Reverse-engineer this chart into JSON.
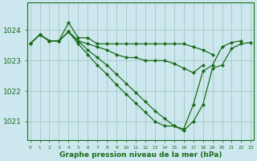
{
  "background_color": "#cce8ee",
  "grid_color": "#aacccc",
  "line_color": "#1a6b1a",
  "marker_color": "#1a6b1a",
  "text_color": "#1a6b1a",
  "xlabel": "Graphe pression niveau de la mer (hPa)",
  "ylim": [
    1020.4,
    1024.9
  ],
  "xlim": [
    -0.3,
    23.3
  ],
  "yticks": [
    1021,
    1022,
    1023,
    1024
  ],
  "xtick_labels": [
    "0",
    "1",
    "2",
    "3",
    "4",
    "5",
    "6",
    "7",
    "8",
    "9",
    "10",
    "11",
    "12",
    "13",
    "14",
    "15",
    "16",
    "17",
    "18",
    "19",
    "20",
    "21",
    "22",
    "23"
  ],
  "series": [
    [
      1023.55,
      1023.85,
      1023.65,
      1023.65,
      1024.25,
      1023.75,
      1023.75,
      1023.55,
      1023.55,
      1023.55,
      1023.55,
      1023.55,
      1023.55,
      1023.55,
      1023.55,
      1023.55,
      1023.55,
      1023.45,
      1023.35,
      1023.2,
      null,
      null,
      null,
      null
    ],
    [
      1023.55,
      1023.85,
      1023.65,
      1023.65,
      1023.95,
      1023.65,
      1023.55,
      1023.45,
      1023.35,
      1023.2,
      1023.1,
      1023.1,
      1023.0,
      1023.0,
      1023.0,
      1022.9,
      1022.75,
      1022.6,
      1022.85,
      null,
      null,
      null,
      null,
      null
    ],
    [
      1023.55,
      1023.85,
      1023.65,
      1023.65,
      1023.95,
      1023.65,
      1023.35,
      1023.1,
      1022.85,
      1022.55,
      1022.25,
      1021.95,
      1021.65,
      1021.35,
      1021.1,
      1020.85,
      1020.75,
      1021.55,
      1022.65,
      1022.85,
      1023.45,
      1023.6,
      1023.65,
      null
    ],
    [
      1023.55,
      1023.85,
      1023.65,
      1023.65,
      1023.95,
      1023.55,
      1023.2,
      1022.85,
      1022.55,
      1022.2,
      1021.9,
      1021.6,
      1021.3,
      1021.0,
      1020.85,
      1020.85,
      1020.7,
      1021.0,
      1021.55,
      1022.75,
      1022.85,
      1023.4,
      1023.55,
      1023.6
    ]
  ]
}
